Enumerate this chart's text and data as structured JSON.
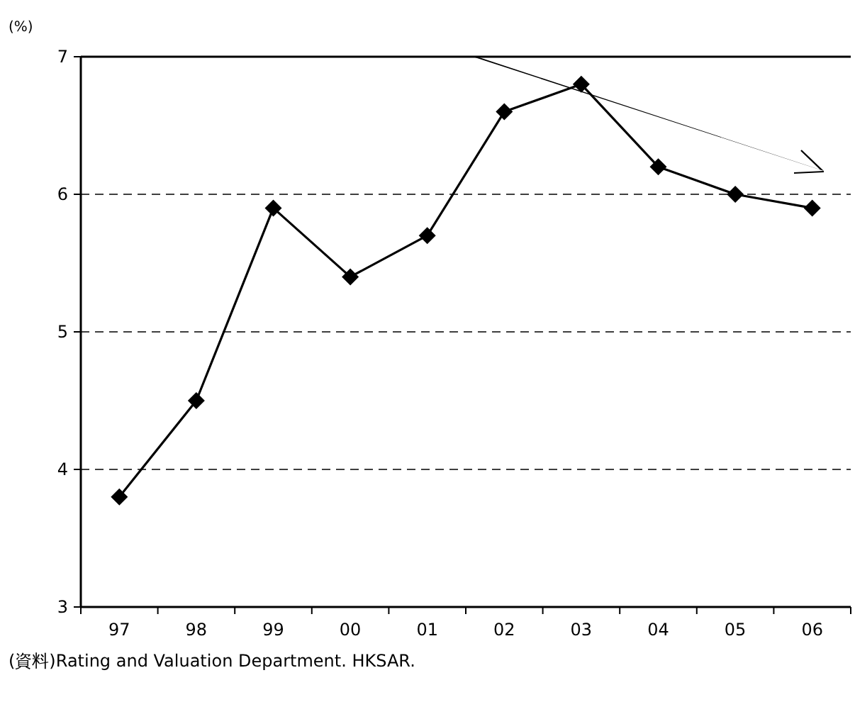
{
  "chart_data": {
    "type": "line",
    "ylabel": "(%)",
    "categories": [
      "97",
      "98",
      "99",
      "00",
      "01",
      "02",
      "03",
      "04",
      "05",
      "06"
    ],
    "series": [
      {
        "color": "#000000",
        "values": [
          3.8,
          4.5,
          5.9,
          5.4,
          5.7,
          6.6,
          6.8,
          6.2,
          6.0,
          5.9
        ]
      }
    ],
    "ylim": [
      3,
      7
    ],
    "yticks": [
      3,
      4,
      5,
      6,
      7
    ],
    "grid": "y",
    "marker": "diamond",
    "line_style": "solid",
    "annotations": [
      "(資料)Rating and Valuation Department. HKSAR."
    ]
  }
}
